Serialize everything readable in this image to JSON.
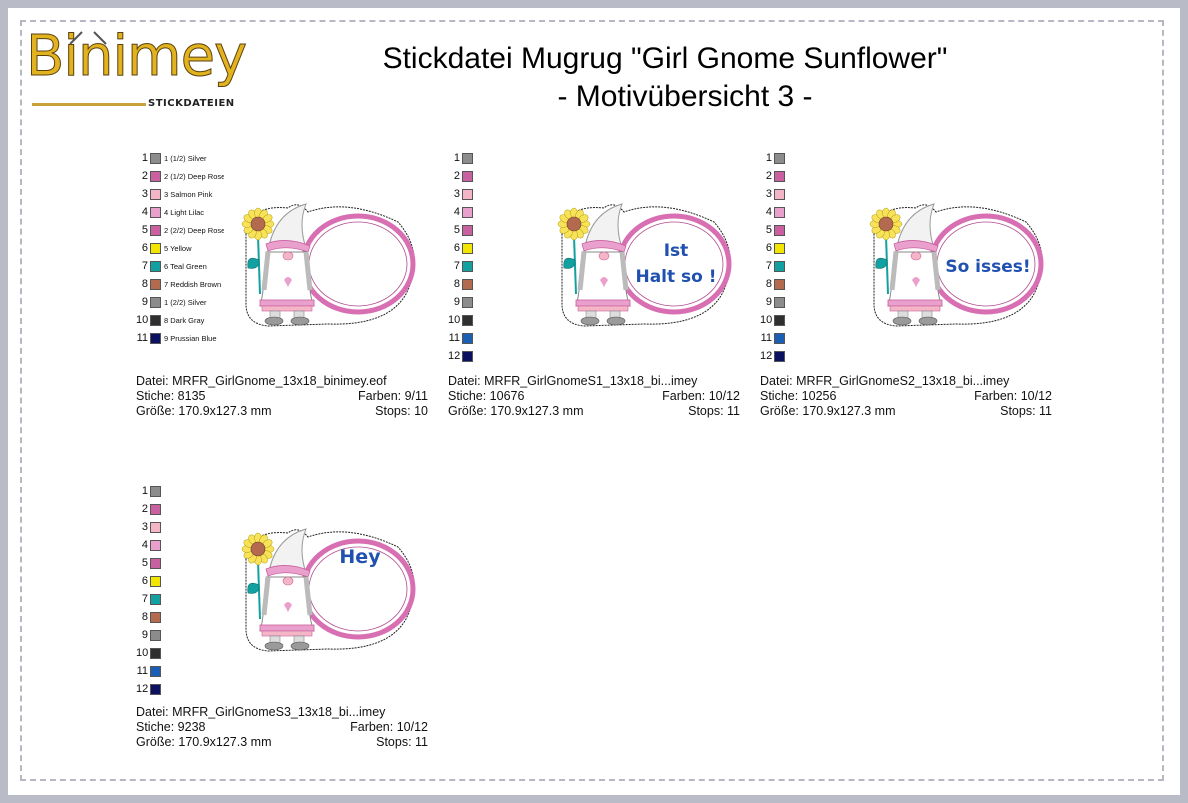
{
  "brand": {
    "name": "Binimey",
    "sub": "STICKDATEIEN"
  },
  "title": {
    "line1": "Stickdatei Mugrug \"Girl Gnome Sunflower\"",
    "line2": "- Motivübersicht 3 -"
  },
  "colors": {
    "silver": "#8c8c8c",
    "deep_rose": "#c9609f",
    "salmon_pink": "#f4b6c6",
    "light_lilac": "#eaa0cc",
    "yellow": "#f2e600",
    "teal_green": "#13a0a0",
    "reddish_brown": "#b36a4f",
    "dark_gray": "#2f2f2f",
    "prussian_blue": "#0b1060",
    "blue": "#1a5fb4",
    "frame_pink": "#d76fb2",
    "text_blue": "#2050b0"
  },
  "panels": [
    {
      "legend": [
        {
          "num": "1",
          "label": "1 (1/2) Silver",
          "color": "#8c8c8c"
        },
        {
          "num": "2",
          "label": "2 (1/2) Deep Rose",
          "color": "#c9609f"
        },
        {
          "num": "3",
          "label": "3 Salmon Pink",
          "color": "#f4b6c6"
        },
        {
          "num": "4",
          "label": "4 Light Lilac",
          "color": "#eaa0cc"
        },
        {
          "num": "5",
          "label": "2 (2/2) Deep Rose",
          "color": "#c9609f"
        },
        {
          "num": "6",
          "label": "5 Yellow",
          "color": "#f2e600"
        },
        {
          "num": "7",
          "label": "6 Teal Green",
          "color": "#13a0a0"
        },
        {
          "num": "8",
          "label": "7 Reddish Brown",
          "color": "#b36a4f"
        },
        {
          "num": "9",
          "label": "1 (2/2) Silver",
          "color": "#8c8c8c"
        },
        {
          "num": "10",
          "label": "8 Dark Gray",
          "color": "#2f2f2f"
        },
        {
          "num": "11",
          "label": "9 Prussian Blue",
          "color": "#0b1060"
        }
      ],
      "text": "",
      "datei": "Datei: MRFR_GirlGnome_13x18_binimey.eof",
      "stiche": "Stiche: 8135",
      "farben": "Farben: 9/11",
      "groesse": "Größe: 170.9x127.3 mm",
      "stops": "Stops: 10"
    },
    {
      "legend": [
        {
          "num": "1",
          "label": "",
          "color": "#8c8c8c"
        },
        {
          "num": "2",
          "label": "",
          "color": "#c9609f"
        },
        {
          "num": "3",
          "label": "",
          "color": "#f4b6c6"
        },
        {
          "num": "4",
          "label": "",
          "color": "#eaa0cc"
        },
        {
          "num": "5",
          "label": "",
          "color": "#c9609f"
        },
        {
          "num": "6",
          "label": "",
          "color": "#f2e600"
        },
        {
          "num": "7",
          "label": "",
          "color": "#13a0a0"
        },
        {
          "num": "8",
          "label": "",
          "color": "#b36a4f"
        },
        {
          "num": "9",
          "label": "",
          "color": "#8c8c8c"
        },
        {
          "num": "10",
          "label": "",
          "color": "#2f2f2f"
        },
        {
          "num": "11",
          "label": "",
          "color": "#1a5fb4"
        },
        {
          "num": "12",
          "label": "",
          "color": "#0b1060"
        }
      ],
      "text": "Ist|Halt so !",
      "datei": "Datei: MRFR_GirlGnomeS1_13x18_bi...imey",
      "stiche": "Stiche: 10676",
      "farben": "Farben: 10/12",
      "groesse": "Größe: 170.9x127.3 mm",
      "stops": "Stops: 11"
    },
    {
      "legend": [
        {
          "num": "1",
          "label": "",
          "color": "#8c8c8c"
        },
        {
          "num": "2",
          "label": "",
          "color": "#c9609f"
        },
        {
          "num": "3",
          "label": "",
          "color": "#f4b6c6"
        },
        {
          "num": "4",
          "label": "",
          "color": "#eaa0cc"
        },
        {
          "num": "5",
          "label": "",
          "color": "#c9609f"
        },
        {
          "num": "6",
          "label": "",
          "color": "#f2e600"
        },
        {
          "num": "7",
          "label": "",
          "color": "#13a0a0"
        },
        {
          "num": "8",
          "label": "",
          "color": "#b36a4f"
        },
        {
          "num": "9",
          "label": "",
          "color": "#8c8c8c"
        },
        {
          "num": "10",
          "label": "",
          "color": "#2f2f2f"
        },
        {
          "num": "11",
          "label": "",
          "color": "#1a5fb4"
        },
        {
          "num": "12",
          "label": "",
          "color": "#0b1060"
        }
      ],
      "text": "So isses!",
      "datei": "Datei: MRFR_GirlGnomeS2_13x18_bi...imey",
      "stiche": "Stiche: 10256",
      "farben": "Farben: 10/12",
      "groesse": "Größe: 170.9x127.3 mm",
      "stops": "Stops: 11"
    },
    {
      "legend": [
        {
          "num": "1",
          "label": "",
          "color": "#8c8c8c"
        },
        {
          "num": "2",
          "label": "",
          "color": "#c9609f"
        },
        {
          "num": "3",
          "label": "",
          "color": "#f4b6c6"
        },
        {
          "num": "4",
          "label": "",
          "color": "#eaa0cc"
        },
        {
          "num": "5",
          "label": "",
          "color": "#c9609f"
        },
        {
          "num": "6",
          "label": "",
          "color": "#f2e600"
        },
        {
          "num": "7",
          "label": "",
          "color": "#13a0a0"
        },
        {
          "num": "8",
          "label": "",
          "color": "#b36a4f"
        },
        {
          "num": "9",
          "label": "",
          "color": "#8c8c8c"
        },
        {
          "num": "10",
          "label": "",
          "color": "#2f2f2f"
        },
        {
          "num": "11",
          "label": "",
          "color": "#1a5fb4"
        },
        {
          "num": "12",
          "label": "",
          "color": "#0b1060"
        }
      ],
      "text": "Hey",
      "datei": "Datei: MRFR_GirlGnomeS3_13x18_bi...imey",
      "stiche": "Stiche: 9238",
      "farben": "Farben: 10/12",
      "groesse": "Größe: 170.9x127.3 mm",
      "stops": "Stops: 11"
    }
  ]
}
